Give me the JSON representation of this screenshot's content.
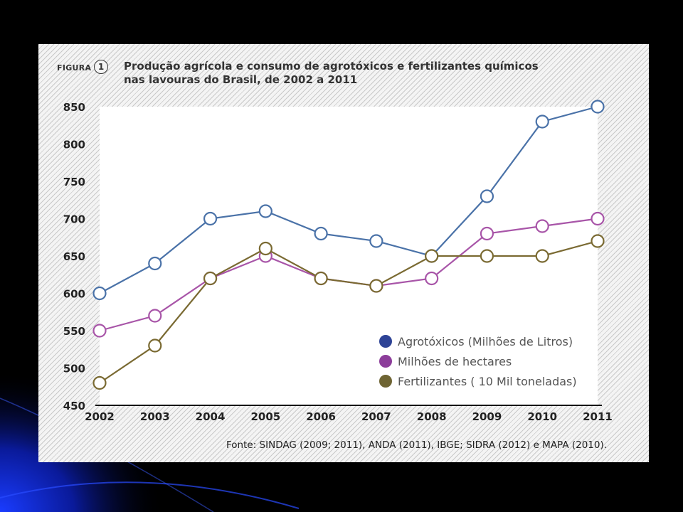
{
  "panel": {
    "figure_label": "FIGURA",
    "figure_number": "1",
    "title_line1": "Produção agrícola e consumo de agrotóxicos e fertilizantes químicos",
    "title_line2": "nas lavouras do Brasil, de 2002 a 2011",
    "source": "Fonte: SINDAG (2009; 2011), ANDA (2011), IBGE; SIDRA (2012) e MAPA (2010)."
  },
  "chart_data": {
    "type": "line",
    "title": "Produção agrícola e consumo de agrotóxicos e fertilizantes químicos nas lavouras do Brasil, de 2002 a 2011",
    "xlabel": "",
    "ylabel": "",
    "x": [
      "2002",
      "2003",
      "2004",
      "2005",
      "2006",
      "2007",
      "2008",
      "2009",
      "2010",
      "2011"
    ],
    "ylim": [
      450,
      850
    ],
    "yticks": [
      450,
      500,
      550,
      600,
      650,
      700,
      750,
      800,
      850
    ],
    "grid": false,
    "legend_position": "bottom-right",
    "series": [
      {
        "name": "Agrotóxicos (Milhões de Litros)",
        "color": "#4a72a8",
        "legend_color": "#2e4396",
        "values": [
          600,
          640,
          700,
          710,
          680,
          670,
          650,
          730,
          830,
          850
        ]
      },
      {
        "name": "Milhões de hectares",
        "color": "#a855a8",
        "legend_color": "#8c3d9a",
        "values": [
          550,
          570,
          620,
          650,
          620,
          610,
          620,
          680,
          690,
          700
        ]
      },
      {
        "name": "Fertilizantes ( 10 Mil toneladas)",
        "color": "#7a6a32",
        "legend_color": "#6e6433",
        "values": [
          480,
          530,
          620,
          660,
          620,
          610,
          650,
          650,
          650,
          670
        ]
      }
    ]
  }
}
